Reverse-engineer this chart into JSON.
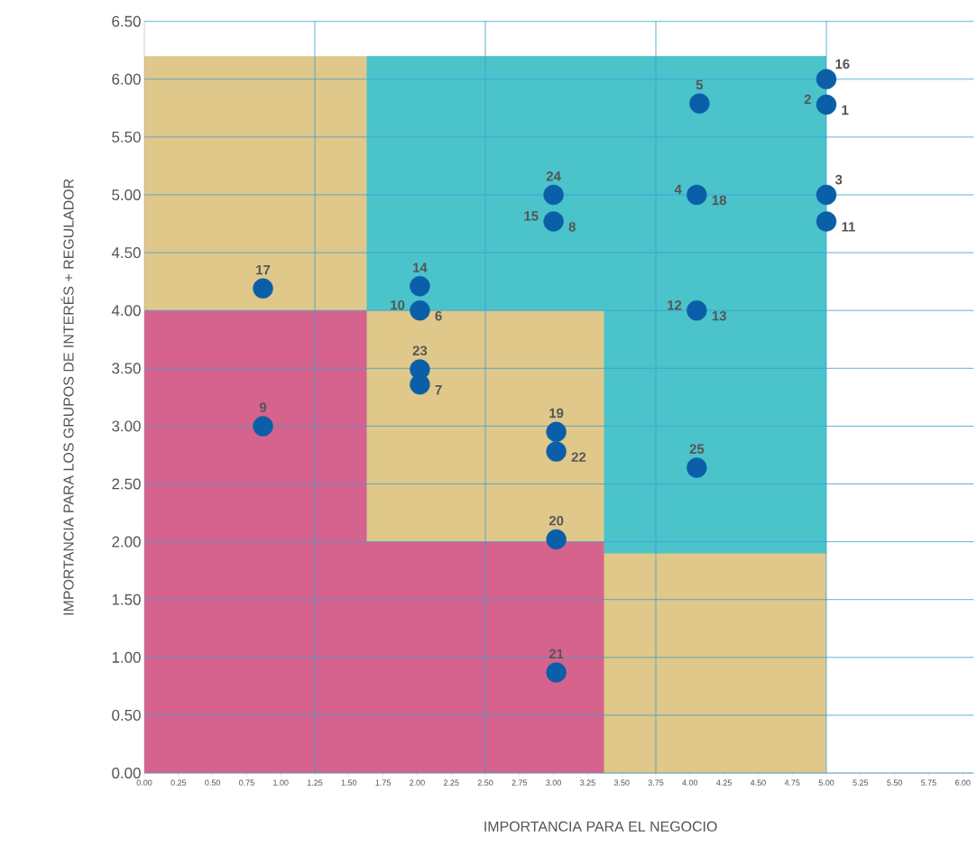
{
  "chart_data": {
    "type": "scatter",
    "xlabel": "IMPORTANCIA PARA EL NEGOCIO",
    "ylabel": "IMPORTANCIA PARA LOS GRUPOS DE INTERÉS + REGULADOR",
    "xlim": [
      0,
      6.08
    ],
    "ylim": [
      0,
      6.5
    ],
    "xticks": [
      {
        "value": 0,
        "label": "0.00"
      },
      {
        "value": 0.25,
        "label": "0.25"
      },
      {
        "value": 0.5,
        "label": "0.50"
      },
      {
        "value": 0.75,
        "label": "0.75"
      },
      {
        "value": 1,
        "label": "1.00"
      },
      {
        "value": 1.25,
        "label": "1.25"
      },
      {
        "value": 1.5,
        "label": "1.50"
      },
      {
        "value": 1.75,
        "label": "1.75"
      },
      {
        "value": 2,
        "label": "2.00"
      },
      {
        "value": 2.25,
        "label": "2.25"
      },
      {
        "value": 2.5,
        "label": "2.50"
      },
      {
        "value": 2.75,
        "label": "2.75"
      },
      {
        "value": 3,
        "label": "3.00"
      },
      {
        "value": 3.25,
        "label": "3.25"
      },
      {
        "value": 3.5,
        "label": "3.50"
      },
      {
        "value": 3.75,
        "label": "3.75"
      },
      {
        "value": 4,
        "label": "4.00"
      },
      {
        "value": 4.25,
        "label": "4.25"
      },
      {
        "value": 4.5,
        "label": "4.50"
      },
      {
        "value": 4.75,
        "label": "4.75"
      },
      {
        "value": 5,
        "label": "5.00"
      },
      {
        "value": 5.25,
        "label": "5.25"
      },
      {
        "value": 5.5,
        "label": "5.50"
      },
      {
        "value": 5.75,
        "label": "5.75"
      },
      {
        "value": 6,
        "label": "6.00"
      }
    ],
    "yticks": [
      {
        "value": 0,
        "label": "0.00"
      },
      {
        "value": 0.5,
        "label": "0.50"
      },
      {
        "value": 1,
        "label": "1.00"
      },
      {
        "value": 1.5,
        "label": "1.50"
      },
      {
        "value": 2,
        "label": "2.00"
      },
      {
        "value": 2.5,
        "label": "2.50"
      },
      {
        "value": 3,
        "label": "3.00"
      },
      {
        "value": 3.5,
        "label": "3.50"
      },
      {
        "value": 4,
        "label": "4.00"
      },
      {
        "value": 4.5,
        "label": "4.50"
      },
      {
        "value": 5,
        "label": "5.00"
      },
      {
        "value": 5.5,
        "label": "5.50"
      },
      {
        "value": 6,
        "label": "6.00"
      },
      {
        "value": 6.5,
        "label": "6.50"
      }
    ],
    "grid": "y",
    "ref_lines": [
      {
        "axis": "x",
        "value": 1.25,
        "color": "#3aa0d0"
      },
      {
        "axis": "x",
        "value": 2.5,
        "color": "#3aa0d0"
      },
      {
        "axis": "x",
        "value": 3.75,
        "color": "#3aa0d0"
      },
      {
        "axis": "x",
        "value": 5,
        "color": "#3aa0d0"
      }
    ],
    "series": [
      {
        "type": "area",
        "color": "#dfc88a",
        "x": [
          0,
          5
        ],
        "values": [
          6.2,
          6.2
        ]
      },
      {
        "type": "area",
        "color": "#4bc3cb",
        "x": [
          1.63,
          5
        ],
        "values": [
          6.2,
          6.2
        ]
      },
      {
        "type": "area",
        "color": "#dfc88a",
        "x": [
          1.63,
          3.37,
          3.37,
          5
        ],
        "values": [
          4,
          4,
          1.9,
          1.9
        ]
      },
      {
        "type": "area",
        "color": "#d6638d",
        "x": [
          0,
          1.63,
          1.63,
          3.37
        ],
        "values": [
          4,
          4,
          2,
          2
        ]
      },
      {
        "marker": "circle",
        "color": "#0a5fa8",
        "x": [
          5.0,
          5.0,
          4.07,
          3.0,
          3.0,
          4.05,
          5.0,
          5.0,
          0.87,
          2.02,
          2.02,
          4.05,
          2.02,
          2.02,
          0.87,
          3.02,
          3.02,
          4.05,
          3.02,
          3.02
        ],
        "values": [
          6.0,
          5.78,
          5.79,
          5.0,
          4.77,
          5.0,
          5.0,
          4.77,
          4.19,
          4.21,
          4.0,
          4.0,
          3.49,
          3.36,
          3.0,
          2.95,
          2.78,
          2.64,
          2.02,
          0.87
        ]
      }
    ],
    "annotations": [
      {
        "text": "16",
        "x": 5.0,
        "y": 6.0
      },
      {
        "text": "2",
        "x": 5.0,
        "y": 5.78
      },
      {
        "text": "1",
        "x": 5.0,
        "y": 5.78
      },
      {
        "text": "5",
        "x": 4.07,
        "y": 5.79
      },
      {
        "text": "24",
        "x": 3.0,
        "y": 5.0
      },
      {
        "text": "15",
        "x": 3.0,
        "y": 4.77
      },
      {
        "text": "8",
        "x": 3.0,
        "y": 4.77
      },
      {
        "text": "4",
        "x": 4.05,
        "y": 5.0
      },
      {
        "text": "18",
        "x": 4.05,
        "y": 5.0
      },
      {
        "text": "3",
        "x": 5.0,
        "y": 5.0
      },
      {
        "text": "11",
        "x": 5.0,
        "y": 4.77
      },
      {
        "text": "17",
        "x": 0.87,
        "y": 4.19
      },
      {
        "text": "14",
        "x": 2.02,
        "y": 4.21
      },
      {
        "text": "10",
        "x": 2.02,
        "y": 4.0
      },
      {
        "text": "6",
        "x": 2.02,
        "y": 4.0
      },
      {
        "text": "12",
        "x": 4.05,
        "y": 4.0
      },
      {
        "text": "13",
        "x": 4.05,
        "y": 4.0
      },
      {
        "text": "23",
        "x": 2.02,
        "y": 3.49
      },
      {
        "text": "7",
        "x": 2.02,
        "y": 3.36
      },
      {
        "text": "9",
        "x": 0.87,
        "y": 3.0
      },
      {
        "text": "19",
        "x": 3.02,
        "y": 2.95
      },
      {
        "text": "22",
        "x": 3.02,
        "y": 2.78
      },
      {
        "text": "25",
        "x": 4.05,
        "y": 2.64
      },
      {
        "text": "20",
        "x": 3.02,
        "y": 2.02
      },
      {
        "text": "21",
        "x": 3.02,
        "y": 0.87
      }
    ]
  }
}
